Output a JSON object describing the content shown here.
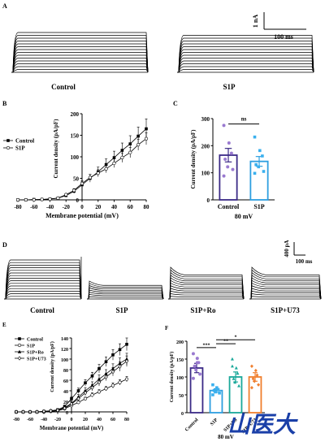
{
  "panels": {
    "A": {
      "letter": "A",
      "scale_v": "1 nA",
      "scale_t": "100 ms",
      "labels": [
        "Control",
        "S1P"
      ]
    },
    "B": {
      "letter": "B",
      "ylabel": "Current density (pA/pF)",
      "xlabel": "Membrane potential (mV)",
      "legend": [
        "Control",
        "S1P"
      ],
      "xticks": [
        "-80",
        "-60",
        "-40",
        "-20",
        "0",
        "20",
        "40",
        "60",
        "80"
      ],
      "yticks": [
        "0",
        "50",
        "100",
        "150",
        "200"
      ]
    },
    "C": {
      "letter": "C",
      "ylabel": "Current density (pA/pF)",
      "xlabel": "80 mV",
      "categories": [
        "Control",
        "S1P"
      ],
      "yticks": [
        "0",
        "100",
        "200",
        "300"
      ],
      "sig": "ns"
    },
    "D": {
      "letter": "D",
      "scale_v": "400 pA",
      "scale_t": "100 ms",
      "labels": [
        "Control",
        "S1P",
        "S1P+Ro",
        "S1P+U73"
      ]
    },
    "E": {
      "letter": "E",
      "ylabel": "Current density (pA/pF)",
      "xlabel": "Membrane potential (mV)",
      "legend": [
        "Control",
        "S1P",
        "S1P+Ro",
        "S1P+U73"
      ],
      "xticks": [
        "-80",
        "-60",
        "-40",
        "-20",
        "0",
        "20",
        "40",
        "60",
        "80"
      ],
      "yticks": [
        "0",
        "20",
        "40",
        "60",
        "80",
        "100",
        "120",
        "140"
      ]
    },
    "F": {
      "letter": "F",
      "ylabel": "Current density (pA/pF)",
      "xlabel": "80 mV",
      "categories": [
        "Control",
        "S1P",
        "S1P+Ro",
        "S1P+U73"
      ],
      "yticks": [
        "0",
        "50",
        "100",
        "150",
        "200"
      ],
      "sig": [
        "***",
        "**",
        "*"
      ]
    }
  },
  "watermark": "山医大",
  "colors": {
    "control": "#3b2a86",
    "s1p": "#2e9fe0",
    "ro": "#1aa89a",
    "u73": "#f07f2e",
    "control_dot": "#9a7ad0",
    "s1p_dot": "#3ab0ee",
    "watermark": "#1a3fa8"
  },
  "chart_data": [
    {
      "panel": "B",
      "type": "line",
      "xlabel": "Membrane potential (mV)",
      "ylabel": "Current density (pA/pF)",
      "xlim": [
        -80,
        80
      ],
      "ylim": [
        0,
        200
      ],
      "x": [
        -80,
        -70,
        -60,
        -50,
        -40,
        -30,
        -20,
        -10,
        0,
        10,
        20,
        30,
        40,
        50,
        60,
        70,
        80
      ],
      "series": [
        {
          "name": "Control",
          "marker": "filled-square",
          "values": [
            0,
            0,
            1,
            1,
            2,
            4,
            10,
            20,
            35,
            50,
            65,
            82,
            98,
            115,
            130,
            148,
            165
          ],
          "errors": [
            0,
            0,
            0,
            0,
            1,
            2,
            3,
            5,
            7,
            9,
            11,
            13,
            15,
            17,
            19,
            21,
            23
          ]
        },
        {
          "name": "S1P",
          "marker": "open-circle",
          "values": [
            0,
            0,
            0,
            1,
            2,
            4,
            12,
            22,
            38,
            52,
            62,
            72,
            85,
            98,
            110,
            128,
            142
          ],
          "errors": [
            0,
            0,
            0,
            0,
            1,
            2,
            3,
            4,
            6,
            7,
            8,
            9,
            10,
            11,
            12,
            13,
            14
          ]
        }
      ]
    },
    {
      "panel": "C",
      "type": "bar",
      "xlabel": "80 mV",
      "ylabel": "Current density (pA/pF)",
      "ylim": [
        0,
        300
      ],
      "categories": [
        "Control",
        "S1P"
      ],
      "values": [
        165,
        142
      ],
      "errors": [
        25,
        18
      ],
      "points": [
        [
          275,
          210,
          172,
          150,
          122,
          112,
          88
        ],
        [
          232,
          182,
          162,
          130,
          122,
          105,
          98
        ]
      ]
    },
    {
      "panel": "E",
      "type": "line",
      "xlabel": "Membrane potential (mV)",
      "ylabel": "Current density (pA/pF)",
      "xlim": [
        -80,
        80
      ],
      "ylim": [
        0,
        140
      ],
      "x": [
        -80,
        -70,
        -60,
        -50,
        -40,
        -30,
        -20,
        -10,
        0,
        10,
        20,
        30,
        40,
        50,
        60,
        70,
        80
      ],
      "series": [
        {
          "name": "Control",
          "marker": "filled-square",
          "values": [
            0,
            0,
            0,
            0,
            1,
            2,
            4,
            10,
            25,
            40,
            55,
            68,
            82,
            95,
            108,
            118,
            128
          ],
          "errors": [
            0,
            0,
            0,
            0,
            1,
            1,
            2,
            3,
            4,
            5,
            6,
            7,
            8,
            9,
            10,
            11,
            12
          ]
        },
        {
          "name": "S1P",
          "marker": "open-circle",
          "values": [
            0,
            0,
            0,
            0,
            0,
            1,
            2,
            6,
            12,
            18,
            25,
            32,
            38,
            44,
            50,
            56,
            62
          ],
          "errors": [
            0,
            0,
            0,
            0,
            0,
            1,
            1,
            2,
            2,
            3,
            3,
            4,
            4,
            4,
            5,
            5,
            5
          ]
        },
        {
          "name": "S1P+Ro",
          "marker": "filled-triangle",
          "values": [
            0,
            0,
            0,
            0,
            1,
            2,
            3,
            8,
            16,
            28,
            40,
            50,
            62,
            72,
            82,
            92,
            100
          ],
          "errors": [
            0,
            0,
            0,
            0,
            1,
            1,
            2,
            3,
            4,
            5,
            6,
            7,
            8,
            8,
            9,
            10,
            11
          ]
        },
        {
          "name": "S1P+U73",
          "marker": "open-diamond",
          "values": [
            0,
            0,
            0,
            0,
            1,
            2,
            3,
            7,
            15,
            25,
            36,
            46,
            56,
            66,
            76,
            86,
            96
          ],
          "errors": [
            0,
            0,
            0,
            0,
            1,
            1,
            2,
            3,
            3,
            4,
            5,
            6,
            7,
            7,
            8,
            9,
            10
          ]
        }
      ]
    },
    {
      "panel": "F",
      "type": "bar",
      "xlabel": "80 mV",
      "ylabel": "Current density (pA/pF)",
      "ylim": [
        0,
        200
      ],
      "categories": [
        "Control",
        "S1P",
        "S1P+Ro",
        "S1P+U73"
      ],
      "values": [
        125,
        62,
        100,
        100
      ],
      "errors": [
        13,
        5,
        14,
        12
      ],
      "points": [
        [
          165,
          152,
          140,
          130,
          120,
          108,
          96,
          140
        ],
        [
          78,
          70,
          65,
          62,
          58,
          55,
          50
        ],
        [
          150,
          125,
          110,
          95,
          85,
          75,
          130
        ],
        [
          130,
          118,
          105,
          95,
          88,
          78,
          70
        ]
      ]
    }
  ]
}
